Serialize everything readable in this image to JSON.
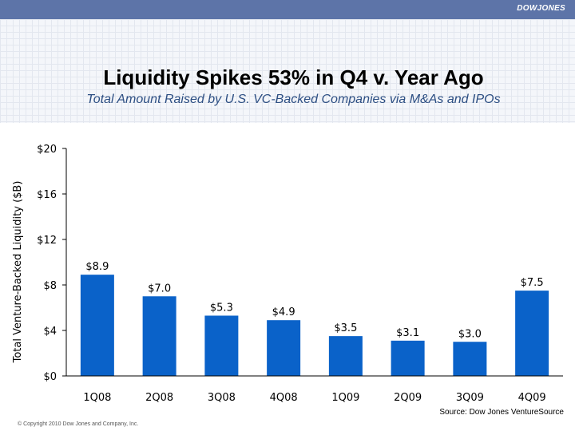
{
  "header": {
    "brand": "DOWJONES"
  },
  "chart_data": {
    "type": "bar",
    "title": "Liquidity Spikes 53% in Q4 v. Year Ago",
    "subtitle": "Total Amount Raised by U.S. VC-Backed Companies via M&As and IPOs",
    "xlabel": "",
    "ylabel": "Total Venture-Backed Liquidity ($B)",
    "categories": [
      "1Q08",
      "2Q08",
      "3Q08",
      "4Q08",
      "1Q09",
      "2Q09",
      "3Q09",
      "4Q09"
    ],
    "values": [
      8.9,
      7.0,
      5.3,
      4.9,
      3.5,
      3.1,
      3.0,
      7.5
    ],
    "data_labels": [
      "$8.9",
      "$7.0",
      "$5.3",
      "$4.9",
      "$3.5",
      "$3.1",
      "$3.0",
      "$7.5"
    ],
    "ylim": [
      0,
      20
    ],
    "yticks": [
      0,
      4,
      8,
      12,
      16,
      20
    ],
    "ytick_labels": [
      "$0",
      "$4",
      "$8",
      "$12",
      "$16",
      "$20"
    ],
    "grid": false,
    "bar_color": "#0a62c9"
  },
  "footer": {
    "source": "Source: Dow Jones VentureSource",
    "copyright": "© Copyright 2010 Dow Jones and Company, Inc."
  }
}
